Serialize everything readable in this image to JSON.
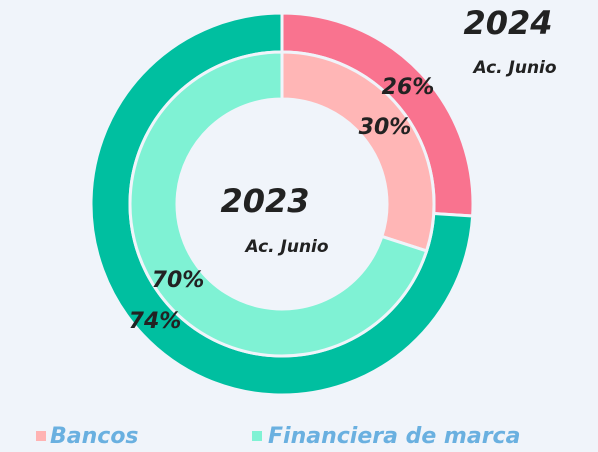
{
  "chart_data": {
    "type": "donut",
    "categories": [
      "Bancos",
      "Financiera de marca"
    ],
    "legend_colors": [
      "#ffb3b3",
      "#7ff2d4"
    ],
    "series": [
      {
        "name": "2024",
        "subtitle": "Ac. Junio",
        "colors": [
          "#f9738f",
          "#00bfa0"
        ],
        "values": [
          26,
          74
        ],
        "value_labels": [
          "26%",
          "74%"
        ]
      },
      {
        "name": "2023",
        "subtitle": "Ac. Junio",
        "colors": [
          "#ffb6b6",
          "#7ff2d4"
        ],
        "values": [
          30,
          70
        ],
        "value_labels": [
          "30%",
          "70%"
        ]
      }
    ]
  }
}
